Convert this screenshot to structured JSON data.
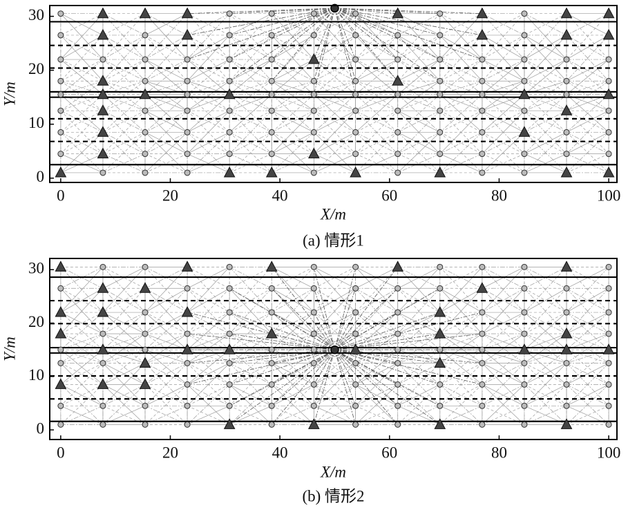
{
  "chart_data": [
    {
      "type": "scatter",
      "caption": "(a) 情形1",
      "xlabel": "X/m",
      "ylabel": "Y/m",
      "xlim": [
        -2,
        101.5
      ],
      "ylim": [
        -0.8,
        32
      ],
      "xticks": [
        0,
        20,
        40,
        60,
        80,
        100
      ],
      "yticks": [
        0,
        10,
        20,
        30
      ],
      "solid_lines": [
        2.5,
        15,
        16,
        29
      ],
      "dashed_lines": [
        6.8,
        11,
        20.4,
        24.6
      ],
      "sink": {
        "x": 50,
        "y": 31.5
      },
      "rows": [
        {
          "y": 30.5,
          "triangle_x": [
            7.7,
            15.4,
            23.1,
            61.5,
            76.9,
            92.3,
            100
          ],
          "circle_x": [
            0,
            30.8,
            38.5,
            46.2,
            53.8,
            69.2,
            84.6
          ]
        },
        {
          "y": 26.5,
          "triangle_x": [
            7.7,
            23.1,
            76.9,
            92.3,
            100
          ],
          "circle_x": [
            0,
            15.4,
            30.8,
            38.5,
            46.2,
            53.8,
            61.5,
            69.2,
            84.6
          ]
        },
        {
          "y": 22,
          "triangle_x": [
            46.2
          ],
          "circle_x": [
            0,
            7.7,
            15.4,
            23.1,
            30.8,
            38.5,
            53.8,
            61.5,
            69.2,
            76.9,
            84.6,
            92.3,
            100
          ]
        },
        {
          "y": 18,
          "triangle_x": [
            7.7,
            61.5
          ],
          "circle_x": [
            0,
            15.4,
            23.1,
            30.8,
            38.5,
            46.2,
            53.8,
            69.2,
            76.9,
            84.6,
            92.3,
            100
          ]
        },
        {
          "y": 15.5,
          "triangle_x": [
            7.7,
            15.4,
            30.8,
            84.6,
            100
          ],
          "circle_x": [
            0,
            23.1,
            38.5,
            46.2,
            53.8,
            61.5,
            69.2,
            76.9,
            92.3
          ]
        },
        {
          "y": 12.5,
          "triangle_x": [
            7.7,
            92.3
          ],
          "circle_x": [
            0,
            15.4,
            23.1,
            30.8,
            38.5,
            46.2,
            53.8,
            61.5,
            69.2,
            76.9,
            84.6,
            100
          ]
        },
        {
          "y": 8.5,
          "triangle_x": [
            7.7,
            84.6
          ],
          "circle_x": [
            0,
            15.4,
            23.1,
            30.8,
            38.5,
            46.2,
            53.8,
            61.5,
            69.2,
            76.9,
            92.3,
            100
          ]
        },
        {
          "y": 4.5,
          "triangle_x": [
            7.7,
            46.2
          ],
          "circle_x": [
            0,
            15.4,
            23.1,
            30.8,
            38.5,
            53.8,
            61.5,
            69.2,
            76.9,
            84.6,
            92.3,
            100
          ]
        },
        {
          "y": 1,
          "triangle_x": [
            0,
            30.8,
            38.5,
            53.8,
            69.2,
            92.3,
            100
          ],
          "circle_x": [
            7.7,
            15.4,
            23.1,
            46.2,
            61.5,
            76.9,
            84.6
          ]
        }
      ]
    },
    {
      "type": "scatter",
      "caption": "(b) 情形2",
      "xlabel": "X/m",
      "ylabel": "Y/m",
      "xlim": [
        -2,
        101.5
      ],
      "ylim": [
        -1.8,
        32.1
      ],
      "xticks": [
        0,
        20,
        40,
        60,
        80,
        100
      ],
      "yticks": [
        0,
        10,
        20,
        30
      ],
      "solid_lines": [
        1.6,
        14.4,
        15.4,
        28.6
      ],
      "dashed_lines": [
        5.8,
        10.1,
        19.9,
        24.2
      ],
      "sink": {
        "x": 50,
        "y": 15
      },
      "rows": [
        {
          "y": 30.5,
          "triangle_x": [
            0,
            23.1,
            38.5,
            61.5,
            92.3
          ],
          "circle_x": [
            7.7,
            15.4,
            30.8,
            46.2,
            53.8,
            69.2,
            76.9,
            84.6,
            100
          ]
        },
        {
          "y": 26.5,
          "triangle_x": [
            7.7,
            15.4,
            76.9
          ],
          "circle_x": [
            0,
            23.1,
            30.8,
            38.5,
            46.2,
            53.8,
            61.5,
            69.2,
            84.6,
            92.3,
            100
          ]
        },
        {
          "y": 22,
          "triangle_x": [
            0,
            7.7,
            23.1,
            69.2
          ],
          "circle_x": [
            15.4,
            30.8,
            38.5,
            46.2,
            53.8,
            61.5,
            76.9,
            84.6,
            92.3,
            100
          ]
        },
        {
          "y": 18,
          "triangle_x": [
            0,
            38.5,
            69.2,
            92.3
          ],
          "circle_x": [
            7.7,
            15.4,
            23.1,
            30.8,
            46.2,
            53.8,
            61.5,
            76.9,
            84.6,
            100
          ]
        },
        {
          "y": 15,
          "triangle_x": [
            7.7,
            23.1,
            30.8,
            53.8,
            84.6,
            92.3,
            100
          ],
          "circle_x": [
            0,
            15.4,
            38.5,
            46.2,
            61.5,
            69.2,
            76.9
          ]
        },
        {
          "y": 12.5,
          "triangle_x": [
            15.4,
            69.2
          ],
          "circle_x": [
            0,
            7.7,
            23.1,
            30.8,
            38.5,
            46.2,
            53.8,
            61.5,
            76.9,
            84.6,
            92.3,
            100
          ]
        },
        {
          "y": 8.5,
          "triangle_x": [
            0,
            7.7,
            15.4
          ],
          "circle_x": [
            23.1,
            30.8,
            38.5,
            46.2,
            53.8,
            61.5,
            69.2,
            76.9,
            84.6,
            92.3,
            100
          ]
        },
        {
          "y": 4.5,
          "triangle_x": [],
          "circle_x": [
            0,
            7.7,
            15.4,
            23.1,
            30.8,
            38.5,
            46.2,
            53.8,
            61.5,
            69.2,
            76.9,
            84.6,
            92.3,
            100
          ]
        },
        {
          "y": 1,
          "triangle_x": [
            30.8,
            46.2,
            69.2,
            92.3
          ],
          "circle_x": [
            0,
            7.7,
            15.4,
            23.1,
            38.5,
            53.8,
            61.5,
            76.9,
            84.6,
            100
          ]
        }
      ]
    }
  ]
}
